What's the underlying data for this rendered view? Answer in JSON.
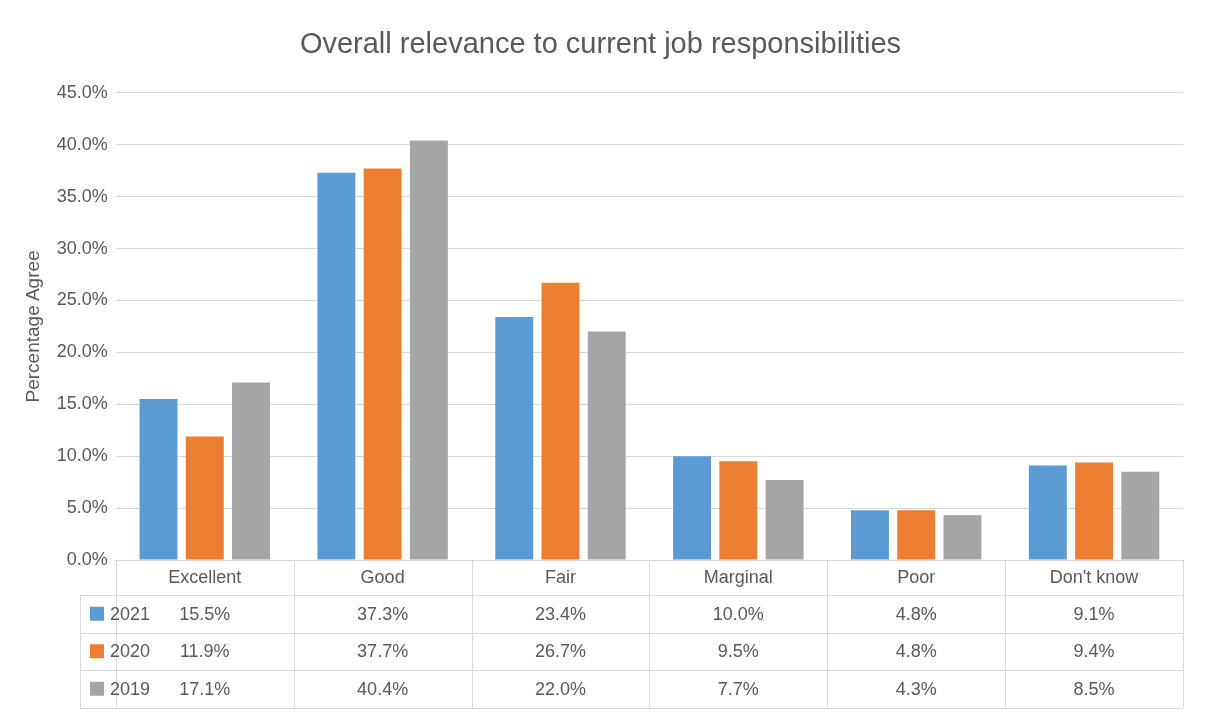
{
  "chart_data": {
    "type": "bar",
    "title": "Overall relevance to current job responsibilities",
    "ylabel": "Percentage Agree",
    "categories": [
      "Excellent",
      "Good",
      "Fair",
      "Marginal",
      "Poor",
      "Don't know"
    ],
    "series": [
      {
        "name": "2021",
        "color": "#5b9bd5",
        "values": [
          15.5,
          37.3,
          23.4,
          10.0,
          4.8,
          9.1
        ],
        "value_labels": [
          "15.5%",
          "37.3%",
          "23.4%",
          "10.0%",
          "4.8%",
          "9.1%"
        ]
      },
      {
        "name": "2020",
        "color": "#ed7d31",
        "values": [
          11.9,
          37.7,
          26.7,
          9.5,
          4.8,
          9.4
        ],
        "value_labels": [
          "11.9%",
          "37.7%",
          "26.7%",
          "9.5%",
          "4.8%",
          "9.4%"
        ]
      },
      {
        "name": "2019",
        "color": "#a5a5a5",
        "values": [
          17.1,
          40.4,
          22.0,
          7.7,
          4.3,
          8.5
        ],
        "value_labels": [
          "17.1%",
          "40.4%",
          "22.0%",
          "7.7%",
          "4.3%",
          "8.5%"
        ]
      }
    ],
    "ylim": [
      0,
      45
    ],
    "yticks": [
      {
        "value": 0,
        "label": "0.0%"
      },
      {
        "value": 5,
        "label": "5.0%"
      },
      {
        "value": 10,
        "label": "10.0%"
      },
      {
        "value": 15,
        "label": "15.0%"
      },
      {
        "value": 20,
        "label": "20.0%"
      },
      {
        "value": 25,
        "label": "25.0%"
      },
      {
        "value": 30,
        "label": "30.0%"
      },
      {
        "value": 35,
        "label": "35.0%"
      },
      {
        "value": 40,
        "label": "40.0%"
      },
      {
        "value": 45,
        "label": "45.0%"
      }
    ],
    "grid": "y",
    "legend": "bottom"
  }
}
